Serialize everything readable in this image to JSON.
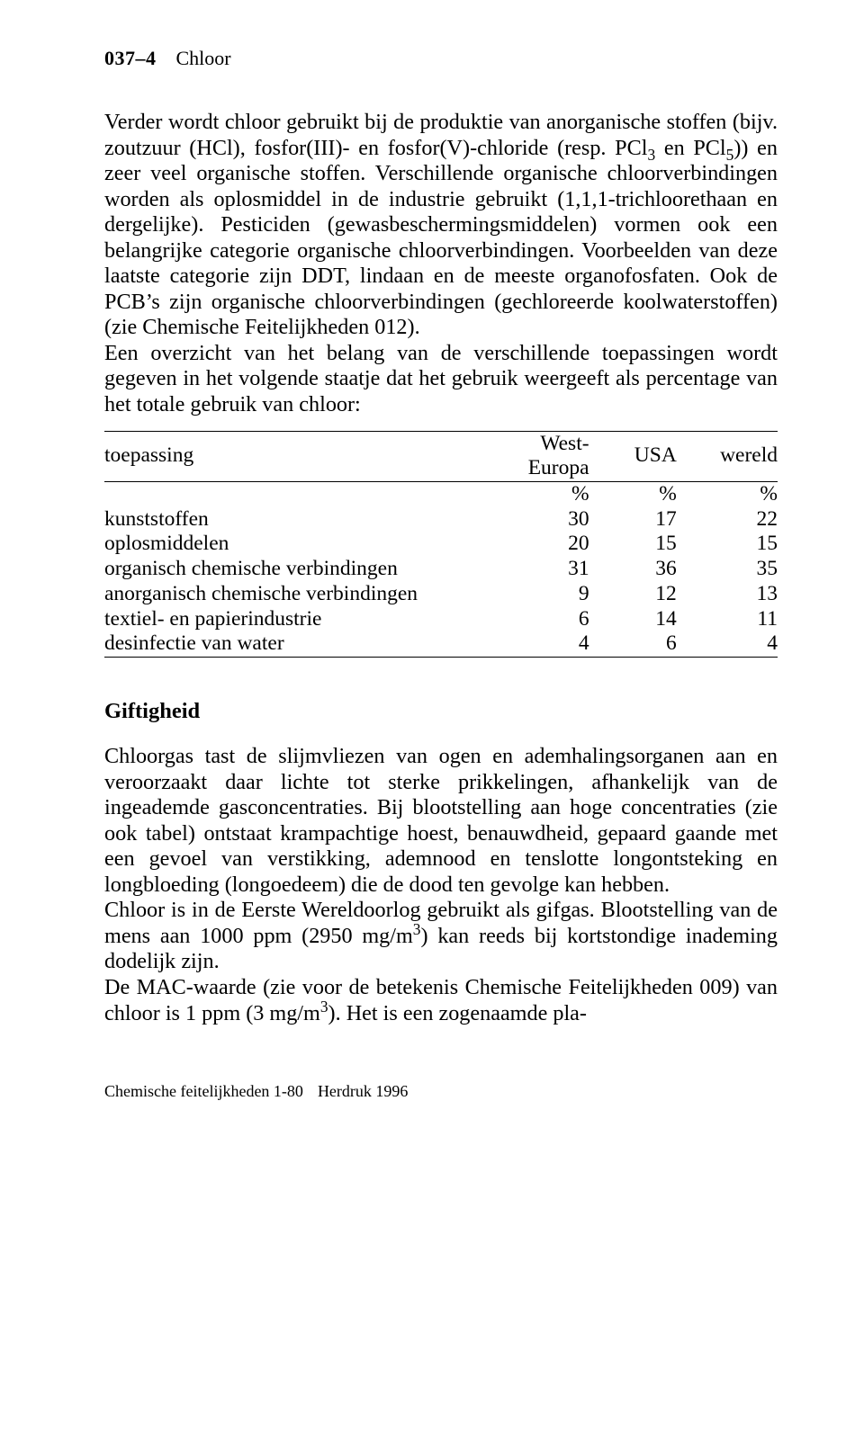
{
  "header": {
    "page_number": "037–4",
    "title": "Chloor"
  },
  "para1_parts": {
    "a": "Verder wordt chloor gebruikt bij de produktie van anorganische stoffen (bijv. zoutzuur (HCl), fosfor(III)- en fosfor(V)-chloride (resp. PCl",
    "sub1": "3",
    "b": " en PCl",
    "sub2": "5",
    "c": ")) en zeer veel organische stoffen. Verschillende organische chloorverbindingen worden als oplosmiddel in de industrie gebruikt (1,1,1-trichloorethaan en dergelijke). Pesticiden (gewasbeschermingsmiddelen) vormen ook een belangrijke categorie organische chloorverbindingen. Voorbeelden van deze laatste categorie zijn DDT, lindaan en de meeste organofosfaten. Ook de PCB’s zijn organische chloorverbindingen (gechloreerde koolwaterstoffen) (zie Chemische Feitelijkheden 012)."
  },
  "para2": "Een overzicht van het belang van de verschillende toepassingen wordt gegeven in het volgende staatje dat het gebruik weergeeft als percentage van het totale gebruik van chloor:",
  "table": {
    "headers": {
      "c1": "toepassing",
      "c2": "West-Europa",
      "c3": "USA",
      "c4": "wereld"
    },
    "pct": {
      "c2": "%",
      "c3": "%",
      "c4": "%"
    },
    "rows": [
      {
        "label": "kunststoffen",
        "v1": "30",
        "v2": "17",
        "v3": "22"
      },
      {
        "label": "oplosmiddelen",
        "v1": "20",
        "v2": "15",
        "v3": "15"
      },
      {
        "label": "organisch chemische verbindingen",
        "v1": "31",
        "v2": "36",
        "v3": "35"
      },
      {
        "label": "anorganisch chemische verbindingen",
        "v1": "9",
        "v2": "12",
        "v3": "13"
      },
      {
        "label": "textiel- en papierindustrie",
        "v1": "6",
        "v2": "14",
        "v3": "11"
      },
      {
        "label": "desinfectie van water",
        "v1": "4",
        "v2": "6",
        "v3": "4"
      }
    ]
  },
  "section2_title": "Giftigheid",
  "para3": "Chloorgas tast de slijmvliezen van ogen en ademhalingsorganen aan en veroorzaakt daar lichte tot sterke prikkelingen, afhankelijk van de ingeademde gasconcentraties. Bij blootstelling aan hoge concentraties (zie ook tabel) ontstaat krampachtige hoest, benauwdheid, gepaard gaande met een gevoel van verstikking, ademnood en tenslotte longontsteking en longbloeding (longoedeem) die de dood ten gevolge kan hebben.",
  "para4_parts": {
    "a": "Chloor is in de Eerste Wereldoorlog gebruikt als gifgas. Blootstelling van de mens aan 1000 ppm (2950 mg/m",
    "sup1": "3",
    "b": ") kan reeds bij kortstondige inademing dodelijk zijn."
  },
  "para5_parts": {
    "a": "De MAC-waarde (zie voor de betekenis Chemische Feitelijkheden 009) van chloor is 1 ppm (3 mg/m",
    "sup1": "3",
    "b": "). Het is een zogenaamde pla-"
  },
  "footer": {
    "a": "Chemische feitelijkheden 1-80",
    "b": "Herdruk 1996"
  }
}
